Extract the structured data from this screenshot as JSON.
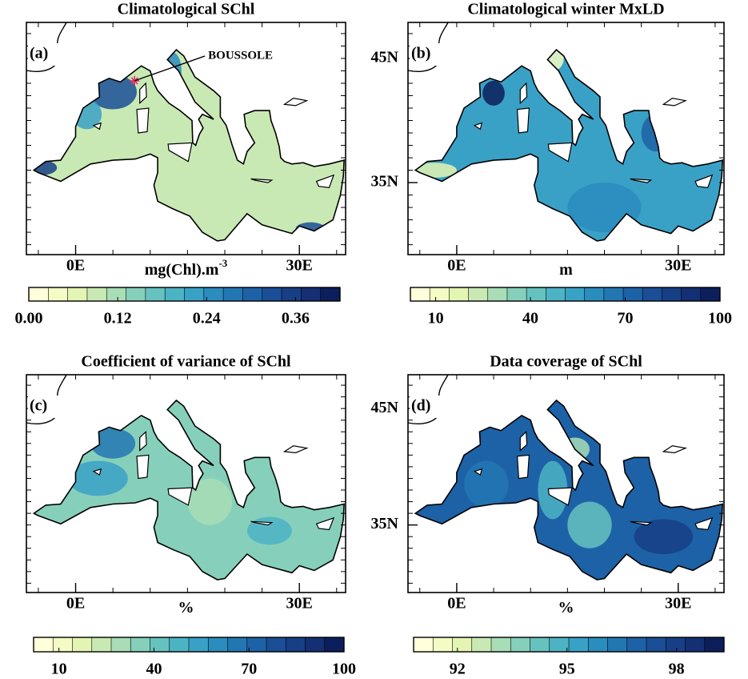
{
  "chart_data": [
    {
      "type": "map",
      "title": "Climatological SChl",
      "panel_label": "(a)",
      "annotation": "BOUSSOLE",
      "xlim": [
        -6.6,
        36.2
      ],
      "ylim": [
        29.2,
        47.9
      ],
      "xticks": [
        {
          "value": 0,
          "label": "0E"
        },
        {
          "value": 30,
          "label": "30E"
        }
      ],
      "colorbar": {
        "label": "mg(Chl).m",
        "label_superscript": "-3",
        "lim": [
          0,
          0.42
        ],
        "ticks": [
          {
            "value": 0,
            "label": "0.00"
          },
          0.12,
          0.24,
          0.36
        ],
        "colors": [
          "#ffffd9",
          "#f4fbc4",
          "#e3f4b3",
          "#c9e9b4",
          "#a8ddb5",
          "#86d0bb",
          "#66c2bf",
          "#4cb3c4",
          "#3aa1c6",
          "#2b8cbe",
          "#2277b3",
          "#1d62a6",
          "#1a4f97",
          "#173f86",
          "#142f74",
          "#0c1f5c"
        ]
      }
    },
    {
      "type": "map",
      "title": "Climatological winter MxLD",
      "panel_label": "(b)",
      "xlim": [
        -6.6,
        36.2
      ],
      "ylim": [
        29.2,
        47.9
      ],
      "xticks": [
        {
          "value": 0,
          "label": "0E"
        },
        {
          "value": 30,
          "label": "30E"
        }
      ],
      "yticks": [
        {
          "value": 35,
          "label": "35N"
        },
        {
          "value": 45,
          "label": "45N"
        }
      ],
      "colorbar": {
        "label": "m",
        "lim": [
          2,
          100
        ],
        "ticks": [
          10,
          40,
          70,
          100
        ],
        "colors": [
          "#ffffd9",
          "#f4fbc4",
          "#e3f4b3",
          "#c9e9b4",
          "#a8ddb5",
          "#86d0bb",
          "#66c2bf",
          "#4cb3c4",
          "#3aa1c6",
          "#2b8cbe",
          "#2277b3",
          "#1d62a6",
          "#1a4f97",
          "#173f86",
          "#142f74",
          "#0c1f5c"
        ]
      }
    },
    {
      "type": "map",
      "title": "Coefficient of variance of SChl",
      "panel_label": "(c)",
      "xlim": [
        -6.6,
        36.2
      ],
      "ylim": [
        29.2,
        47.9
      ],
      "xticks": [
        {
          "value": 0,
          "label": "0E"
        },
        {
          "value": 30,
          "label": "30E"
        }
      ],
      "colorbar": {
        "label": "%",
        "lim": [
          2,
          100
        ],
        "ticks": [
          10,
          40,
          70,
          100
        ],
        "colors": [
          "#ffffd9",
          "#f4fbc4",
          "#e3f4b3",
          "#c9e9b4",
          "#a8ddb5",
          "#86d0bb",
          "#66c2bf",
          "#4cb3c4",
          "#3aa1c6",
          "#2b8cbe",
          "#2277b3",
          "#1d62a6",
          "#1a4f97",
          "#173f86",
          "#142f74",
          "#0c1f5c"
        ]
      }
    },
    {
      "type": "map",
      "title": "Data coverage of SChl",
      "panel_label": "(d)",
      "xlim": [
        -6.6,
        36.2
      ],
      "ylim": [
        29.2,
        47.9
      ],
      "xticks": [
        {
          "value": 0,
          "label": "0E"
        },
        {
          "value": 30,
          "label": "30E"
        }
      ],
      "yticks": [
        {
          "value": 35,
          "label": "35N"
        },
        {
          "value": 45,
          "label": "45N"
        }
      ],
      "colorbar": {
        "label": "%",
        "lim": [
          90.8,
          99.3
        ],
        "ticks": [
          92,
          95,
          98
        ],
        "colors": [
          "#ffffd9",
          "#f4fbc4",
          "#e3f4b3",
          "#c9e9b4",
          "#a8ddb5",
          "#86d0bb",
          "#66c2bf",
          "#4cb3c4",
          "#3aa1c6",
          "#2b8cbe",
          "#2277b3",
          "#1d62a6",
          "#1a4f97",
          "#173f86",
          "#142f74",
          "#0c1f5c"
        ]
      }
    }
  ]
}
